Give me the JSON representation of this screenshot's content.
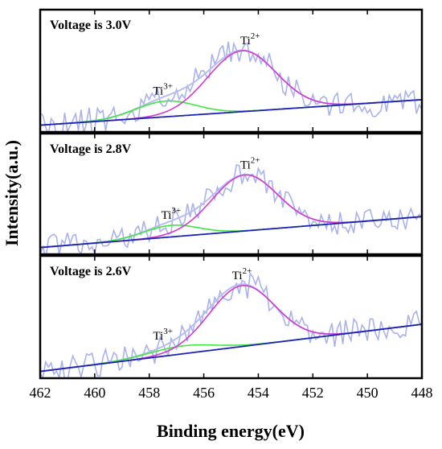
{
  "chart_data": {
    "type": "line",
    "xlabel": "Binding energy(eV)",
    "ylabel": "Intensity(a.u.)",
    "xlim": [
      462,
      448
    ],
    "x_reversed": true,
    "x_ticks": [
      "462",
      "460",
      "458",
      "456",
      "454",
      "452",
      "450",
      "448"
    ],
    "series_colors": {
      "raw": "#aab2ee",
      "envelope": "#b8bdf0",
      "ti2": "#d23ad2",
      "ti3": "#3ee83e",
      "background": "#1a23b4"
    },
    "panels": [
      {
        "label": "Voltage is 3.0V",
        "annotations": [
          {
            "base": "Ti",
            "sup": "2+",
            "x": 454.3
          },
          {
            "base": "Ti",
            "sup": "3+",
            "x": 457.5
          }
        ],
        "ti2_peak": {
          "center": 454.6,
          "height": 0.62,
          "width": 1.25
        },
        "ti3_peak": {
          "center": 457.4,
          "height": 0.16,
          "width": 1.1
        },
        "background": {
          "y_at_462": 0.02,
          "y_at_448": 0.28
        },
        "noise_amplitude": 0.14,
        "seed": 11
      },
      {
        "label": "Voltage is 2.8V",
        "annotations": [
          {
            "base": "Ti",
            "sup": "2+",
            "x": 454.3
          },
          {
            "base": "Ti",
            "sup": "3+",
            "x": 457.2
          }
        ],
        "ti2_peak": {
          "center": 454.5,
          "height": 0.58,
          "width": 1.2
        },
        "ti3_peak": {
          "center": 457.2,
          "height": 0.12,
          "width": 1.0
        },
        "background": {
          "y_at_462": 0.02,
          "y_at_448": 0.34
        },
        "noise_amplitude": 0.13,
        "seed": 27
      },
      {
        "label": "Voltage is 2.6V",
        "annotations": [
          {
            "base": "Ti",
            "sup": "2+",
            "x": 454.6
          },
          {
            "base": "Ti",
            "sup": "3+",
            "x": 457.5
          }
        ],
        "ti2_peak": {
          "center": 454.6,
          "height": 0.62,
          "width": 1.2
        },
        "ti3_peak": {
          "center": 456.8,
          "height": 0.08,
          "width": 1.2
        },
        "background": {
          "y_at_462": 0.02,
          "y_at_448": 0.5
        },
        "noise_amplitude": 0.14,
        "seed": 43
      }
    ]
  }
}
